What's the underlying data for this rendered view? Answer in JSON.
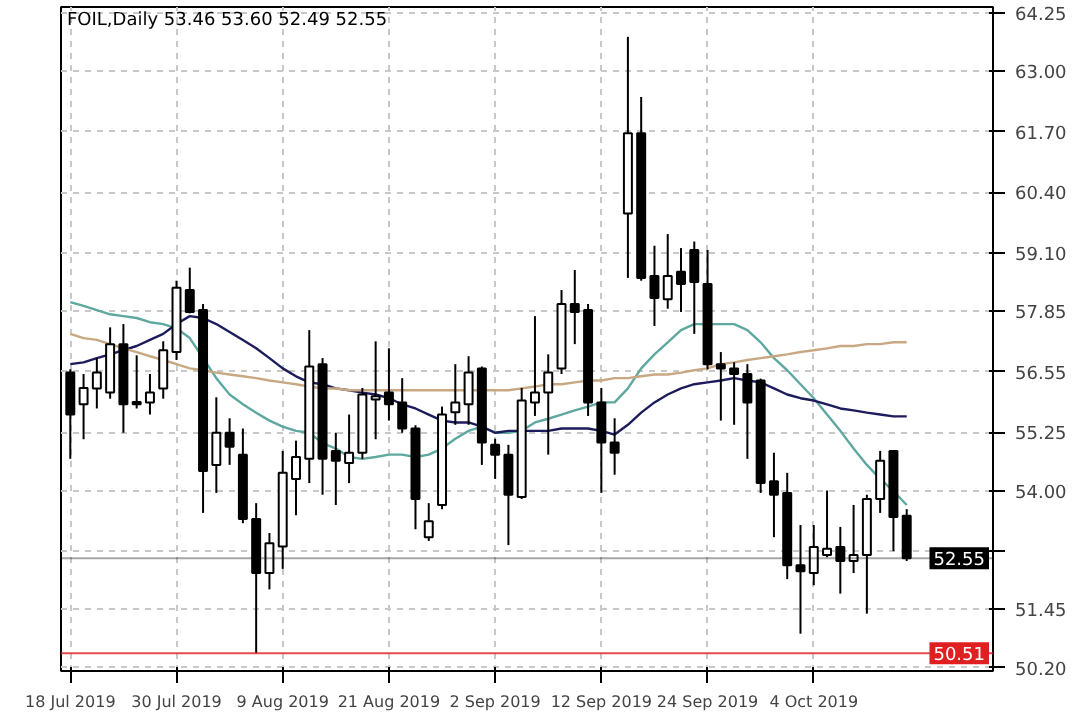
{
  "chart_data": {
    "type": "candlestick",
    "title": "FOIL,Daily 53.46 53.60 52.49 52.55",
    "categories": [
      "18 Jul 2019",
      null,
      null,
      null,
      null,
      null,
      null,
      null,
      "30 Jul 2019",
      null,
      null,
      null,
      null,
      null,
      null,
      null,
      "9 Aug 2019",
      null,
      null,
      null,
      null,
      null,
      null,
      null,
      "21 Aug 2019",
      null,
      null,
      null,
      null,
      null,
      null,
      null,
      "2 Sep 2019",
      null,
      null,
      null,
      null,
      null,
      null,
      null,
      "12 Sep 2019",
      null,
      null,
      null,
      null,
      null,
      null,
      null,
      "24 Sep 2019",
      null,
      null,
      null,
      null,
      null,
      null,
      null,
      "4 Oct 2019",
      null,
      null,
      null,
      null,
      null,
      null,
      null
    ],
    "ohlc": [
      [
        56.53,
        56.6,
        54.68,
        55.63
      ],
      [
        55.85,
        56.5,
        55.1,
        56.2
      ],
      [
        56.19,
        56.84,
        55.76,
        56.53
      ],
      [
        56.1,
        57.5,
        55.97,
        57.14
      ],
      [
        57.14,
        57.57,
        55.24,
        55.85
      ],
      [
        55.9,
        56.9,
        55.76,
        55.85
      ],
      [
        55.89,
        56.5,
        55.63,
        56.1
      ],
      [
        56.19,
        57.2,
        55.97,
        57.01
      ],
      [
        56.97,
        58.5,
        56.8,
        58.35
      ],
      [
        58.3,
        58.78,
        57.8,
        57.83
      ],
      [
        57.87,
        58.0,
        53.52,
        54.42
      ],
      [
        54.55,
        56.0,
        53.95,
        55.24
      ],
      [
        55.24,
        55.55,
        54.55,
        54.94
      ],
      [
        54.77,
        55.33,
        53.3,
        53.39
      ],
      [
        53.39,
        53.73,
        50.51,
        52.23
      ],
      [
        52.23,
        53.09,
        51.88,
        52.87
      ],
      [
        52.8,
        54.85,
        52.32,
        54.38
      ],
      [
        54.25,
        55.07,
        53.47,
        54.72
      ],
      [
        54.68,
        57.44,
        54.16,
        56.66
      ],
      [
        56.71,
        56.84,
        53.91,
        54.68
      ],
      [
        54.85,
        55.24,
        53.69,
        54.64
      ],
      [
        54.59,
        55.63,
        54.16,
        54.81
      ],
      [
        54.81,
        56.2,
        54.68,
        56.06
      ],
      [
        55.95,
        57.2,
        55.1,
        56.02
      ],
      [
        56.1,
        57.05,
        55.5,
        55.85
      ],
      [
        55.89,
        56.41,
        55.24,
        55.33
      ],
      [
        55.33,
        55.4,
        53.17,
        53.82
      ],
      [
        53.0,
        53.73,
        52.92,
        53.34
      ],
      [
        53.69,
        55.8,
        53.6,
        55.63
      ],
      [
        55.68,
        56.71,
        55.41,
        55.89
      ],
      [
        55.85,
        56.88,
        55.41,
        56.53
      ],
      [
        56.62,
        56.66,
        54.55,
        55.03
      ],
      [
        54.98,
        55.11,
        54.25,
        54.77
      ],
      [
        54.77,
        54.98,
        52.83,
        53.91
      ],
      [
        53.86,
        56.2,
        53.82,
        55.93
      ],
      [
        55.89,
        57.74,
        55.6,
        56.1
      ],
      [
        56.1,
        56.92,
        54.77,
        56.53
      ],
      [
        56.62,
        58.3,
        56.5,
        58.0
      ],
      [
        58.0,
        58.73,
        57.14,
        57.83
      ],
      [
        57.87,
        58.0,
        55.6,
        55.89
      ],
      [
        55.89,
        56.2,
        53.95,
        55.03
      ],
      [
        55.03,
        55.55,
        54.34,
        54.81
      ],
      [
        59.94,
        63.73,
        58.56,
        61.66
      ],
      [
        61.66,
        62.44,
        58.5,
        58.56
      ],
      [
        58.6,
        59.25,
        57.53,
        58.13
      ],
      [
        58.1,
        59.5,
        57.9,
        58.6
      ],
      [
        58.69,
        59.2,
        57.83,
        58.43
      ],
      [
        59.16,
        59.34,
        57.36,
        58.47
      ],
      [
        58.43,
        59.16,
        56.6,
        56.71
      ],
      [
        56.71,
        56.97,
        55.5,
        56.62
      ],
      [
        56.62,
        56.75,
        55.41,
        56.5
      ],
      [
        56.5,
        56.71,
        54.68,
        55.89
      ],
      [
        56.36,
        56.4,
        53.95,
        54.16
      ],
      [
        54.2,
        54.81,
        53.0,
        53.91
      ],
      [
        53.95,
        54.38,
        52.1,
        52.4
      ],
      [
        52.4,
        53.26,
        50.93,
        52.27
      ],
      [
        52.23,
        53.26,
        51.97,
        52.79
      ],
      [
        52.62,
        54.0,
        52.57,
        52.75
      ],
      [
        52.79,
        53.22,
        51.79,
        52.49
      ],
      [
        52.49,
        53.69,
        52.23,
        52.62
      ],
      [
        52.62,
        53.91,
        51.36,
        53.82
      ],
      [
        53.82,
        54.85,
        53.52,
        54.64
      ],
      [
        54.85,
        54.85,
        52.7,
        53.43
      ],
      [
        53.46,
        53.6,
        52.49,
        52.55
      ]
    ],
    "color": "#000000",
    "series": [
      {
        "type": "line",
        "color": "#5fa8a0",
        "values": [
          58.04,
          57.96,
          57.87,
          57.78,
          57.74,
          57.7,
          57.61,
          57.57,
          57.48,
          57.27,
          56.84,
          56.41,
          56.06,
          55.85,
          55.67,
          55.5,
          55.37,
          55.28,
          55.24,
          55.02,
          54.9,
          54.72,
          54.68,
          54.72,
          54.77,
          54.77,
          54.72,
          54.77,
          54.9,
          55.11,
          55.28,
          55.37,
          55.24,
          55.24,
          55.28,
          55.46,
          55.54,
          55.63,
          55.72,
          55.8,
          55.89,
          55.89,
          56.19,
          56.62,
          56.92,
          57.18,
          57.44,
          57.57,
          57.57,
          57.57,
          57.57,
          57.44,
          57.18,
          56.84,
          56.58,
          56.28,
          55.98,
          55.63,
          55.28,
          54.9,
          54.55,
          54.25,
          53.99,
          53.69
        ]
      },
      {
        "type": "line",
        "color": "#1c1c5c",
        "values": [
          56.71,
          56.75,
          56.84,
          56.92,
          57.01,
          57.1,
          57.23,
          57.36,
          57.57,
          57.74,
          57.7,
          57.57,
          57.4,
          57.23,
          57.05,
          56.84,
          56.62,
          56.45,
          56.32,
          56.28,
          56.19,
          56.15,
          56.1,
          56.06,
          55.98,
          55.85,
          55.76,
          55.63,
          55.5,
          55.46,
          55.46,
          55.37,
          55.24,
          55.28,
          55.28,
          55.28,
          55.28,
          55.33,
          55.33,
          55.33,
          55.28,
          55.2,
          55.41,
          55.67,
          55.89,
          56.06,
          56.19,
          56.28,
          56.32,
          56.36,
          56.41,
          56.36,
          56.32,
          56.19,
          56.06,
          55.98,
          55.93,
          55.85,
          55.76,
          55.72,
          55.67,
          55.63,
          55.59,
          55.59
        ]
      },
      {
        "type": "line",
        "color": "#c8a882",
        "values": [
          57.36,
          57.27,
          57.23,
          57.14,
          57.05,
          56.97,
          56.88,
          56.8,
          56.71,
          56.62,
          56.58,
          56.53,
          56.49,
          56.45,
          56.41,
          56.36,
          56.32,
          56.28,
          56.23,
          56.19,
          56.19,
          56.15,
          56.15,
          56.15,
          56.15,
          56.15,
          56.15,
          56.15,
          56.15,
          56.15,
          56.15,
          56.15,
          56.15,
          56.15,
          56.19,
          56.23,
          56.28,
          56.28,
          56.32,
          56.36,
          56.36,
          56.41,
          56.41,
          56.45,
          56.49,
          56.49,
          56.53,
          56.58,
          56.62,
          56.71,
          56.75,
          56.8,
          56.84,
          56.88,
          56.92,
          56.97,
          57.01,
          57.05,
          57.1,
          57.1,
          57.14,
          57.14,
          57.18,
          57.18
        ]
      }
    ],
    "ylim": [
      50.13,
      64.37
    ],
    "yticks": [
      64.25,
      {
        "value": 63,
        "label": "63.00"
      },
      {
        "value": 61.7,
        "label": "61.70"
      },
      {
        "value": 60.4,
        "label": "60.40"
      },
      {
        "value": 59.1,
        "label": "59.10"
      },
      57.85,
      56.55,
      55.25,
      {
        "value": 54,
        "label": "54.00"
      },
      {
        "value": 52.7,
        "label": null
      },
      51.45,
      {
        "value": 50.2,
        "label": "50.20"
      }
    ],
    "ref_lines": [
      {
        "axis": "y",
        "value": 52.55,
        "label": "52.55",
        "color": "#000000"
      },
      {
        "axis": "y",
        "value": 50.51,
        "label": "50.51",
        "color": "#e02020"
      }
    ],
    "grid": true
  }
}
